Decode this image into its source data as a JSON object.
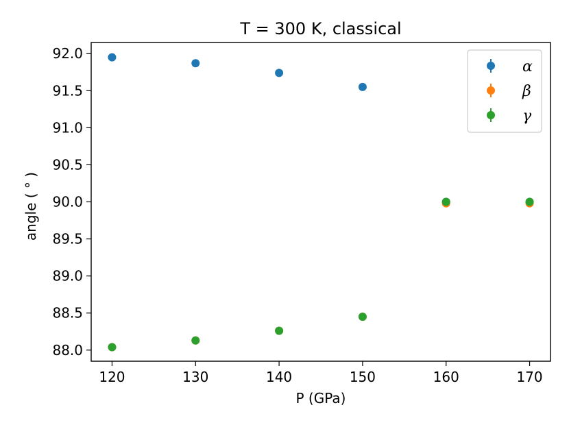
{
  "chart_data": {
    "type": "scatter",
    "title": "T = 300 K, classical",
    "xlabel": "P (GPa)",
    "ylabel": "angle ( $^\\circ$ )",
    "ylabel_display": "angle ( ° )",
    "xlim": [
      117.5,
      172.5
    ],
    "ylim": [
      87.85,
      92.15
    ],
    "xticks": [
      120,
      130,
      140,
      150,
      160,
      170
    ],
    "xtick_labels": [
      "120",
      "130",
      "140",
      "150",
      "160",
      "170"
    ],
    "yticks": [
      88.0,
      88.5,
      89.0,
      89.5,
      90.0,
      90.5,
      91.0,
      91.5,
      92.0
    ],
    "ytick_labels": [
      "88.0",
      "88.5",
      "89.0",
      "89.5",
      "90.0",
      "90.5",
      "91.0",
      "91.5",
      "92.0"
    ],
    "grid": false,
    "legend_position": "top-right",
    "x": [
      120,
      130,
      140,
      150,
      160,
      170
    ],
    "series": [
      {
        "name": "α",
        "color": "#1f77b4",
        "values": [
          91.95,
          91.87,
          91.74,
          91.55,
          90.0,
          90.0
        ]
      },
      {
        "name": "β",
        "color": "#ff7f0e",
        "values": [
          88.04,
          88.13,
          88.26,
          88.45,
          89.98,
          89.98
        ]
      },
      {
        "name": "γ",
        "color": "#2ca02c",
        "values": [
          88.04,
          88.13,
          88.26,
          88.45,
          90.0,
          90.0
        ]
      }
    ]
  }
}
